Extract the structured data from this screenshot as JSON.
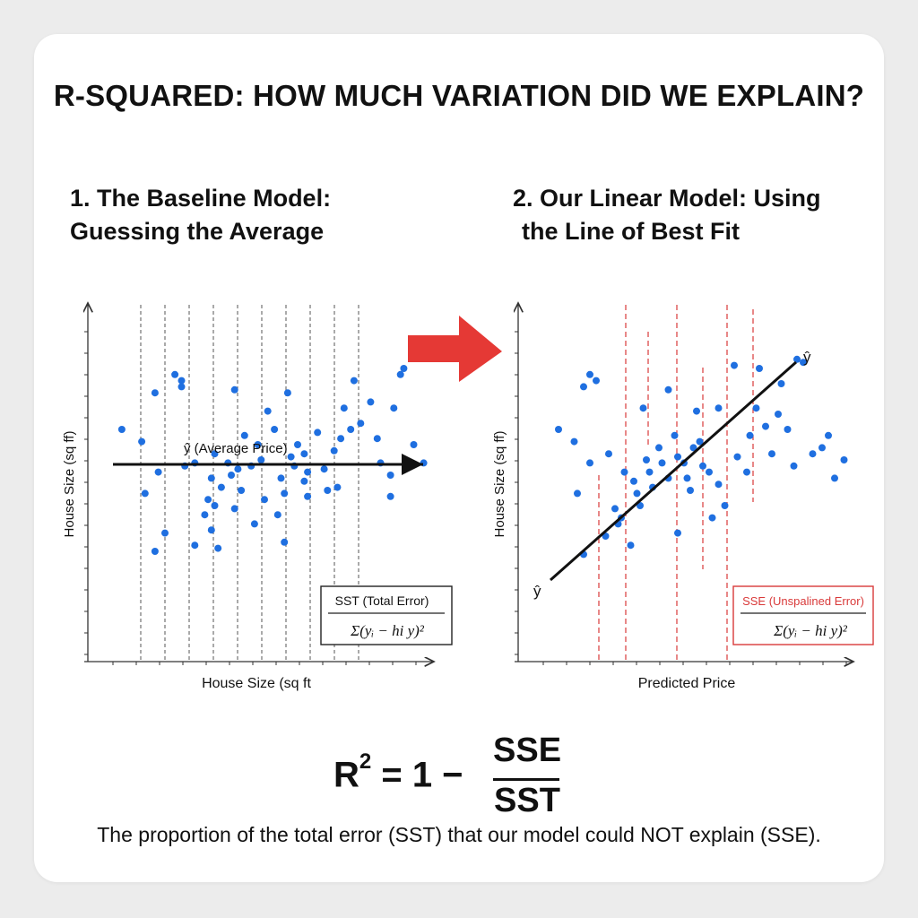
{
  "title": "R-SQUARED: HOW MUCH VARIATION DID WE EXPLAIN?",
  "left_panel": {
    "title_line1": "1. The Baseline Model:",
    "title_line2": "Guessing the Average",
    "mean_line_label": "ŷ (Average Price)",
    "ylabel": "House Size (sq ff)",
    "xlabel": "House Size (sq ft",
    "box_title": "SST (Total Error)",
    "box_formula": "Σ(yᵢ − hi y)²"
  },
  "right_panel": {
    "title_line1": "2. Our Linear Model: Using",
    "title_line2": "the Line of Best Fit",
    "line_label_top": "ŷ",
    "line_label_bottom": "ŷ",
    "ylabel": "House Size (sq ff)",
    "xlabel": "Predicted Price",
    "box_title": "SSE (Unspalined Error)",
    "box_formula": "Σ(yᵢ − hi y)²"
  },
  "formula": {
    "lhs": "R",
    "exp": "2",
    "rest": " = 1 − ",
    "numerator": "SSE",
    "denominator": "SST"
  },
  "caption": "The proportion of the total error (SST) that our model could NOT explain (SSE).",
  "colors": {
    "points": "#1f6fe0",
    "residual_lines": "#d93a3a",
    "arrow": "#e53935",
    "text": "#111111"
  },
  "chart_data": [
    {
      "type": "scatter",
      "title": "1. The Baseline Model: Guessing the Average",
      "xlabel": "House Size (sq ft",
      "ylabel": "House Size (sq ff)",
      "xlim": [
        0,
        10
      ],
      "ylim": [
        0,
        10
      ],
      "mean_y": 5.5,
      "grid": "vertical dashed",
      "points": [
        [
          0.7,
          6.5
        ],
        [
          1.3,
          6.1
        ],
        [
          1.8,
          5.1
        ],
        [
          1.7,
          7.7
        ],
        [
          1.4,
          4.4
        ],
        [
          1.7,
          2.5
        ],
        [
          2.3,
          8.3
        ],
        [
          2.5,
          8.1
        ],
        [
          2.5,
          7.9
        ],
        [
          2.0,
          3.1
        ],
        [
          2.6,
          5.3
        ],
        [
          2.9,
          2.7
        ],
        [
          3.2,
          3.7
        ],
        [
          3.3,
          4.2
        ],
        [
          3.4,
          3.2
        ],
        [
          3.6,
          2.6
        ],
        [
          3.5,
          4.0
        ],
        [
          3.7,
          4.6
        ],
        [
          3.4,
          4.9
        ],
        [
          3.5,
          5.7
        ],
        [
          4.0,
          5.0
        ],
        [
          3.9,
          5.4
        ],
        [
          4.2,
          5.2
        ],
        [
          4.3,
          4.5
        ],
        [
          4.1,
          3.9
        ],
        [
          4.7,
          3.4
        ],
        [
          4.1,
          7.8
        ],
        [
          4.4,
          6.3
        ],
        [
          4.8,
          6.0
        ],
        [
          4.9,
          5.5
        ],
        [
          5.3,
          6.5
        ],
        [
          5.1,
          7.1
        ],
        [
          5.5,
          4.9
        ],
        [
          5.6,
          4.4
        ],
        [
          5.4,
          3.7
        ],
        [
          5.6,
          2.8
        ],
        [
          5.9,
          5.3
        ],
        [
          5.8,
          5.6
        ],
        [
          6.0,
          6.0
        ],
        [
          6.3,
          5.1
        ],
        [
          6.2,
          4.8
        ],
        [
          5.7,
          7.7
        ],
        [
          6.3,
          4.3
        ],
        [
          6.6,
          6.4
        ],
        [
          6.8,
          5.2
        ],
        [
          6.9,
          4.5
        ],
        [
          7.1,
          5.8
        ],
        [
          7.3,
          6.2
        ],
        [
          7.4,
          7.2
        ],
        [
          7.2,
          4.6
        ],
        [
          7.7,
          8.1
        ],
        [
          7.6,
          6.5
        ],
        [
          7.9,
          6.7
        ],
        [
          8.2,
          7.4
        ],
        [
          8.4,
          6.2
        ],
        [
          8.8,
          5.0
        ],
        [
          8.5,
          5.4
        ],
        [
          8.9,
          7.2
        ],
        [
          9.1,
          8.3
        ],
        [
          9.2,
          8.5
        ],
        [
          8.8,
          4.3
        ],
        [
          9.5,
          6.0
        ],
        [
          9.8,
          5.4
        ],
        [
          2.9,
          5.4
        ],
        [
          4.6,
          5.3
        ],
        [
          6.2,
          5.7
        ],
        [
          5.0,
          4.2
        ]
      ]
    },
    {
      "type": "scatter",
      "title": "2. Our Linear Model: Using the Line of Best Fit",
      "xlabel": "Predicted Price",
      "ylabel": "House Size (sq ff)",
      "xlim": [
        0,
        10
      ],
      "ylim": [
        0,
        10
      ],
      "regression_line": {
        "x1": 1.0,
        "y1": 2.5,
        "x2": 8.5,
        "y2": 8.4
      },
      "grid": "vertical dashed red residuals",
      "points": [
        [
          0.8,
          6.5
        ],
        [
          1.3,
          6.1
        ],
        [
          1.6,
          7.9
        ],
        [
          1.8,
          8.3
        ],
        [
          2.0,
          8.1
        ],
        [
          1.8,
          5.4
        ],
        [
          1.4,
          4.4
        ],
        [
          1.6,
          2.4
        ],
        [
          2.3,
          3.0
        ],
        [
          2.6,
          3.9
        ],
        [
          2.7,
          3.4
        ],
        [
          2.8,
          3.6
        ],
        [
          2.9,
          5.1
        ],
        [
          3.1,
          2.7
        ],
        [
          3.2,
          4.8
        ],
        [
          3.3,
          4.4
        ],
        [
          3.4,
          4.0
        ],
        [
          3.6,
          5.5
        ],
        [
          3.7,
          5.1
        ],
        [
          3.8,
          4.6
        ],
        [
          4.0,
          5.9
        ],
        [
          4.1,
          5.4
        ],
        [
          4.3,
          4.9
        ],
        [
          4.5,
          6.3
        ],
        [
          4.6,
          5.6
        ],
        [
          4.8,
          5.4
        ],
        [
          4.9,
          4.9
        ],
        [
          5.0,
          4.5
        ],
        [
          5.1,
          5.9
        ],
        [
          5.3,
          6.1
        ],
        [
          5.4,
          5.3
        ],
        [
          5.6,
          5.1
        ],
        [
          5.7,
          3.6
        ],
        [
          5.9,
          4.7
        ],
        [
          4.3,
          7.8
        ],
        [
          4.6,
          3.1
        ],
        [
          5.2,
          7.1
        ],
        [
          5.9,
          7.2
        ],
        [
          6.4,
          8.6
        ],
        [
          6.5,
          5.6
        ],
        [
          6.8,
          5.1
        ],
        [
          6.9,
          6.3
        ],
        [
          7.1,
          7.2
        ],
        [
          7.2,
          8.5
        ],
        [
          7.4,
          6.6
        ],
        [
          7.6,
          5.7
        ],
        [
          7.8,
          7.0
        ],
        [
          7.9,
          8.0
        ],
        [
          8.1,
          6.5
        ],
        [
          8.4,
          8.8
        ],
        [
          8.6,
          8.7
        ],
        [
          8.9,
          5.7
        ],
        [
          9.2,
          5.9
        ],
        [
          9.4,
          6.3
        ],
        [
          9.6,
          4.9
        ],
        [
          9.9,
          5.5
        ],
        [
          3.5,
          7.2
        ],
        [
          6.1,
          4.0
        ],
        [
          8.3,
          5.3
        ],
        [
          2.4,
          5.7
        ]
      ]
    }
  ]
}
